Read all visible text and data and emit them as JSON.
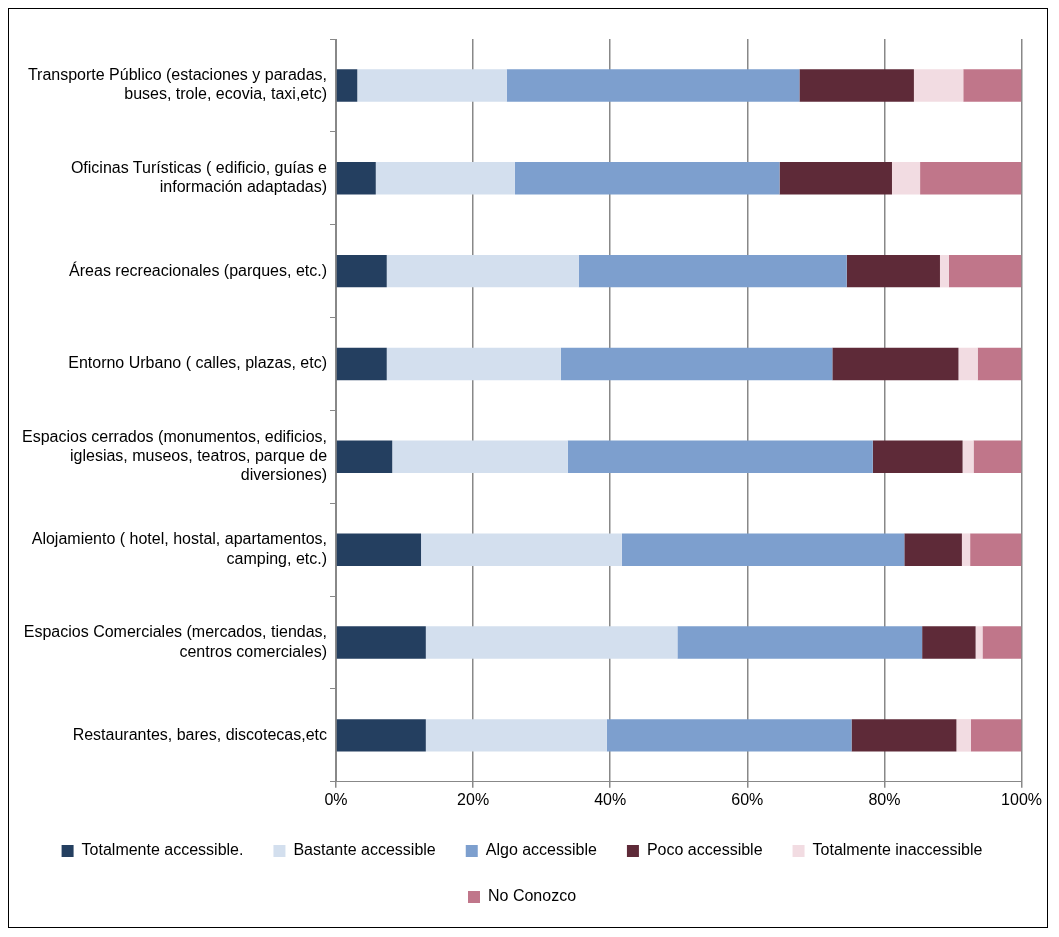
{
  "chart_data": {
    "type": "bar",
    "orientation": "horizontal",
    "stacked": true,
    "categories": [
      "Transporte Público (estaciones y paradas, buses, trole, ecovia, taxi,etc)",
      "Oficinas Turísticas ( edificio, guías e información adaptadas)",
      "Áreas recreacionales (parques, etc.)",
      "Entorno Urbano ( calles, plazas, etc)",
      "Espacios cerrados (monumentos, edificios, iglesias, museos, teatros, parque de diversiones)",
      "Alojamiento ( hotel, hostal, apartamentos, camping, etc.)",
      "Espacios Comerciales (mercados, tiendas, centros comerciales)",
      "Restaurantes, bares, discotecas,etc"
    ],
    "series": [
      {
        "name": "Totalmente accessible.",
        "color": "#243f60",
        "values": [
          3.1,
          5.8,
          7.4,
          7.4,
          8.2,
          12.4,
          13.1,
          13.1
        ]
      },
      {
        "name": "Bastante accessible",
        "color": "#d3dfee",
        "values": [
          21.8,
          20.3,
          28.0,
          25.4,
          25.6,
          29.3,
          36.7,
          26.4
        ]
      },
      {
        "name": "Algo accessible",
        "color": "#7d9fce",
        "values": [
          42.7,
          38.6,
          39.1,
          39.6,
          44.5,
          41.2,
          35.7,
          35.7
        ]
      },
      {
        "name": "Poco accessible",
        "color": "#5e2a38",
        "values": [
          16.7,
          16.4,
          13.6,
          18.4,
          13.1,
          8.4,
          7.8,
          15.3
        ]
      },
      {
        "name": "Totalmente inaccessible",
        "color": "#f2dce2",
        "values": [
          7.2,
          4.1,
          1.3,
          2.8,
          1.6,
          1.2,
          1.0,
          2.1
        ]
      },
      {
        "name": "No Conozco",
        "color": "#c0768a",
        "values": [
          8.5,
          14.8,
          10.6,
          6.4,
          7.0,
          7.5,
          5.7,
          7.4
        ]
      }
    ],
    "xlim": [
      0,
      100
    ],
    "xticks": [
      {
        "value": 0,
        "label": "0%"
      },
      {
        "value": 20,
        "label": "20%"
      },
      {
        "value": 40,
        "label": "40%"
      },
      {
        "value": 60,
        "label": "60%"
      },
      {
        "value": 80,
        "label": "80%"
      },
      {
        "value": 100,
        "label": "100%"
      }
    ],
    "grid": "x",
    "legend": "bottom"
  }
}
